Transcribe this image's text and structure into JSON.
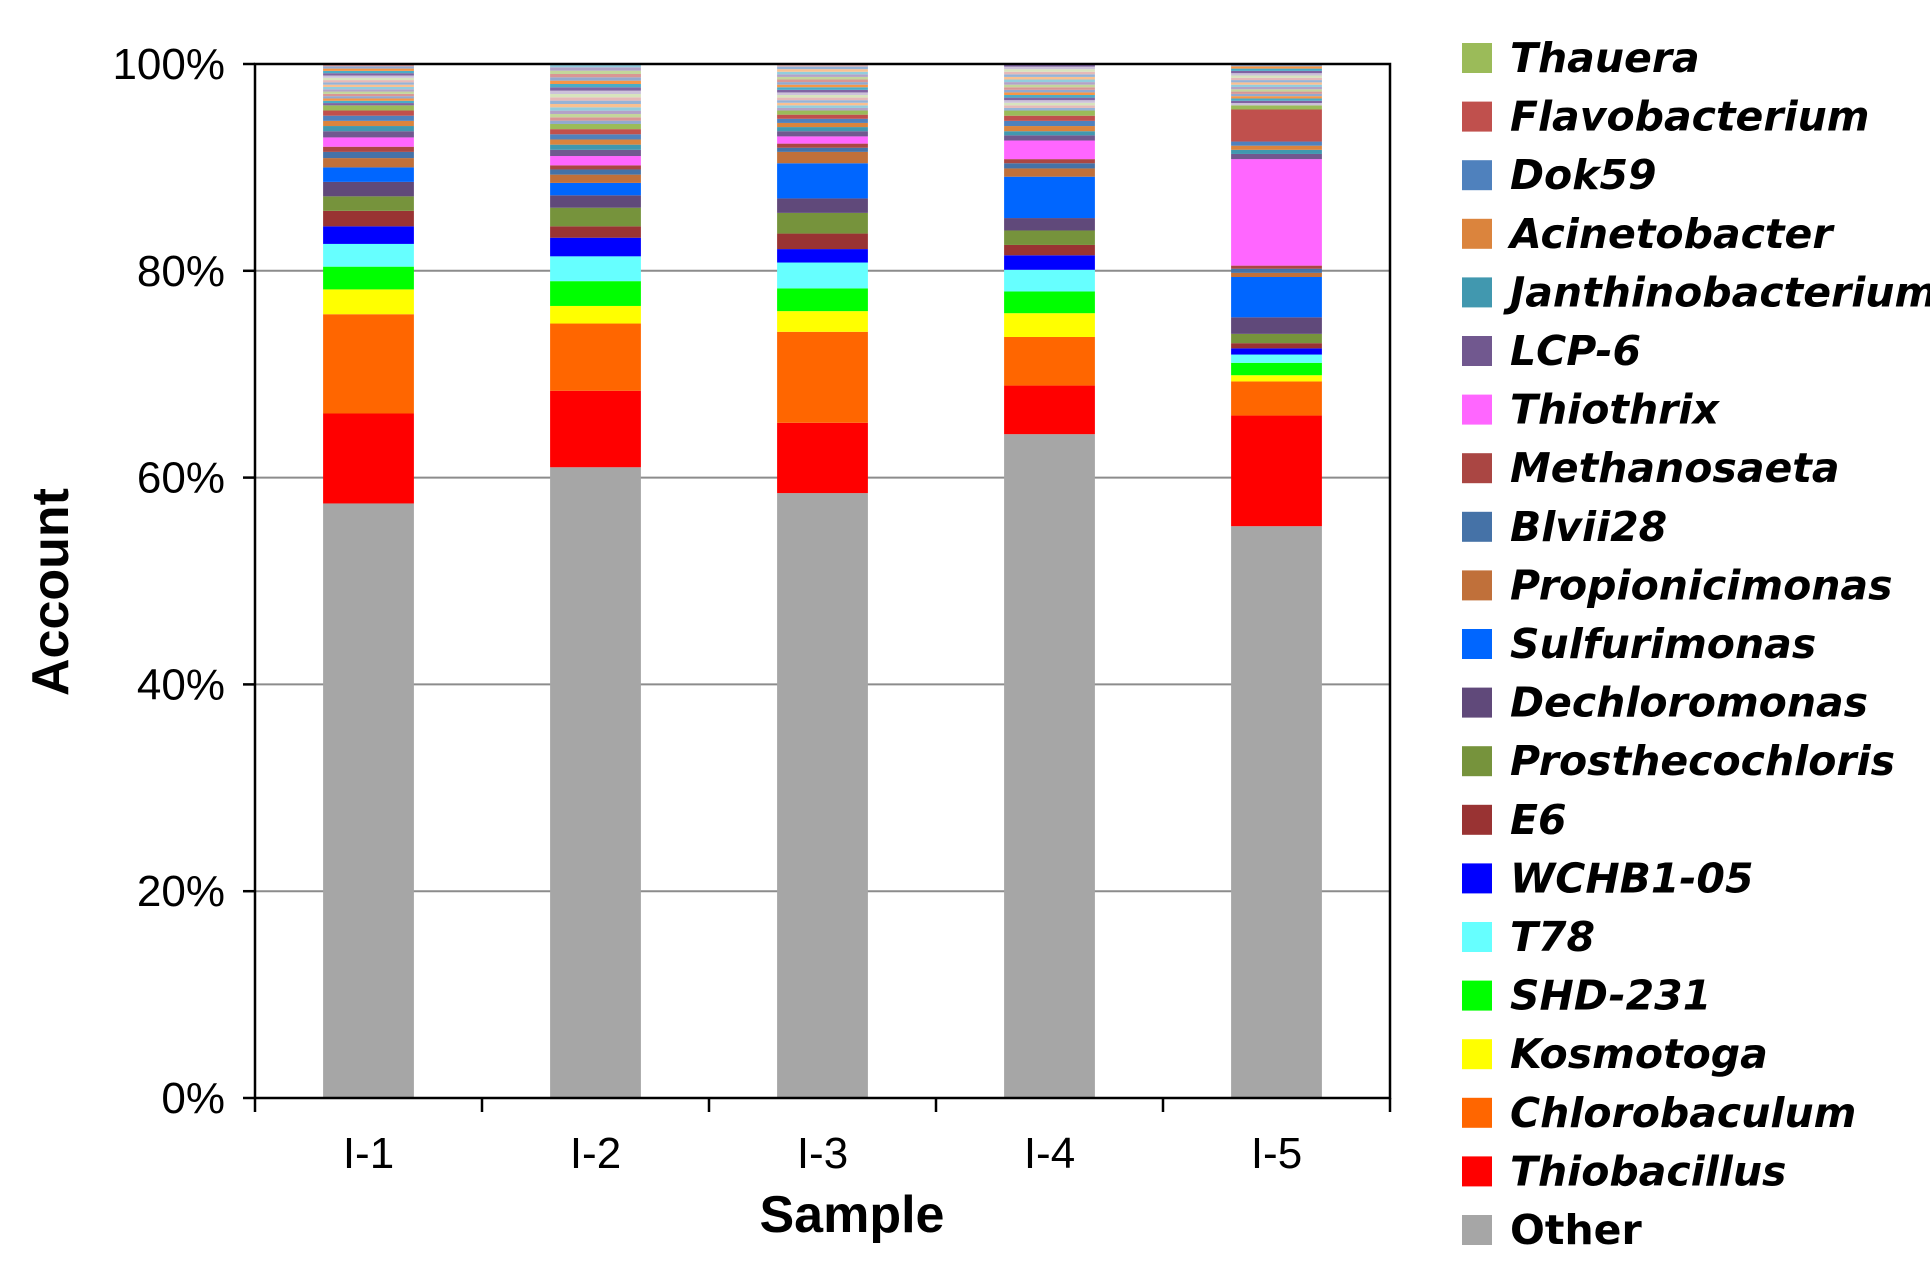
{
  "chart_data": {
    "type": "bar",
    "stacked": true,
    "xlabel": "Sample",
    "ylabel": "Account",
    "ylim": [
      0,
      100
    ],
    "y_ticks": [
      "0%",
      "20%",
      "40%",
      "60%",
      "80%",
      "100%"
    ],
    "grid": "horizontal",
    "legend_position": "right",
    "categories": [
      "I-1",
      "I-2",
      "I-3",
      "I-4",
      "I-5"
    ],
    "series": [
      {
        "name": "Other",
        "color": "#a6a6a6",
        "italic": false,
        "values": [
          57.5,
          61.0,
          58.5,
          64.2,
          55.3
        ]
      },
      {
        "name": "Thiobacillus",
        "color": "#ff0000",
        "italic": true,
        "values": [
          8.7,
          7.4,
          6.8,
          4.7,
          10.7
        ]
      },
      {
        "name": "Chlorobaculum",
        "color": "#ff6600",
        "italic": true,
        "values": [
          9.6,
          6.5,
          8.8,
          4.7,
          3.3
        ]
      },
      {
        "name": "Kosmotoga",
        "color": "#ffff00",
        "italic": true,
        "values": [
          2.4,
          1.7,
          2.0,
          2.3,
          0.6
        ]
      },
      {
        "name": "SHD-231",
        "color": "#00ff00",
        "italic": true,
        "values": [
          2.2,
          2.4,
          2.2,
          2.1,
          1.2
        ]
      },
      {
        "name": "T78",
        "color": "#66ffff",
        "italic": true,
        "values": [
          2.2,
          2.4,
          2.5,
          2.1,
          0.8
        ]
      },
      {
        "name": "WCHB1-05",
        "color": "#0000ff",
        "italic": true,
        "values": [
          1.7,
          1.8,
          1.3,
          1.4,
          0.6
        ]
      },
      {
        "name": "E6",
        "color": "#993333",
        "italic": true,
        "values": [
          1.5,
          1.1,
          1.5,
          1.0,
          0.5
        ]
      },
      {
        "name": "Prosthecochloris",
        "color": "#76933c",
        "italic": true,
        "values": [
          1.4,
          1.8,
          2.0,
          1.4,
          0.9
        ]
      },
      {
        "name": "Dechloromonas",
        "color": "#60497a",
        "italic": true,
        "values": [
          1.4,
          1.2,
          1.4,
          1.2,
          1.6
        ]
      },
      {
        "name": "Sulfurimonas",
        "color": "#0066ff",
        "italic": true,
        "values": [
          1.4,
          1.2,
          3.4,
          4.0,
          3.9
        ]
      },
      {
        "name": "Propionicimonas",
        "color": "#c0703a",
        "italic": true,
        "values": [
          0.9,
          0.8,
          1.1,
          0.8,
          0.4
        ]
      },
      {
        "name": "Blvii28",
        "color": "#4572a7",
        "italic": true,
        "values": [
          0.6,
          0.5,
          0.4,
          0.5,
          0.4
        ]
      },
      {
        "name": "Methanosaeta",
        "color": "#aa4643",
        "italic": true,
        "values": [
          0.5,
          0.4,
          0.4,
          0.4,
          0.3
        ]
      },
      {
        "name": "Thiothrix",
        "color": "#ff66ff",
        "italic": true,
        "values": [
          0.9,
          0.9,
          0.7,
          1.8,
          10.3
        ]
      },
      {
        "name": "LCP-6",
        "color": "#71588f",
        "italic": true,
        "values": [
          0.6,
          0.6,
          0.5,
          0.5,
          0.5
        ]
      },
      {
        "name": "Janthinobacterium",
        "color": "#4198af",
        "italic": true,
        "values": [
          0.5,
          0.5,
          0.4,
          0.4,
          0.4
        ]
      },
      {
        "name": "Acinetobacter",
        "color": "#db843d",
        "italic": true,
        "values": [
          0.5,
          0.5,
          0.4,
          0.5,
          0.4
        ]
      },
      {
        "name": "Dok59",
        "color": "#4f81bd",
        "italic": true,
        "values": [
          0.5,
          0.5,
          0.4,
          0.5,
          0.4
        ]
      },
      {
        "name": "Flavobacterium",
        "color": "#c0504d",
        "italic": true,
        "values": [
          0.5,
          0.5,
          0.4,
          0.5,
          3.1
        ]
      },
      {
        "name": "Thauera",
        "color": "#9bbb59",
        "italic": true,
        "values": [
          0.5,
          0.5,
          0.4,
          0.5,
          0.4
        ]
      }
    ],
    "minor_bands_colors": [
      "#8064a2",
      "#4bacc6",
      "#f79646",
      "#92a9cf",
      "#d99694",
      "#c3d69b",
      "#b3a2c7",
      "#93cddd",
      "#fac090",
      "#95b3d7",
      "#e6b9b8",
      "#d7e4bd",
      "#ccc1da"
    ]
  }
}
